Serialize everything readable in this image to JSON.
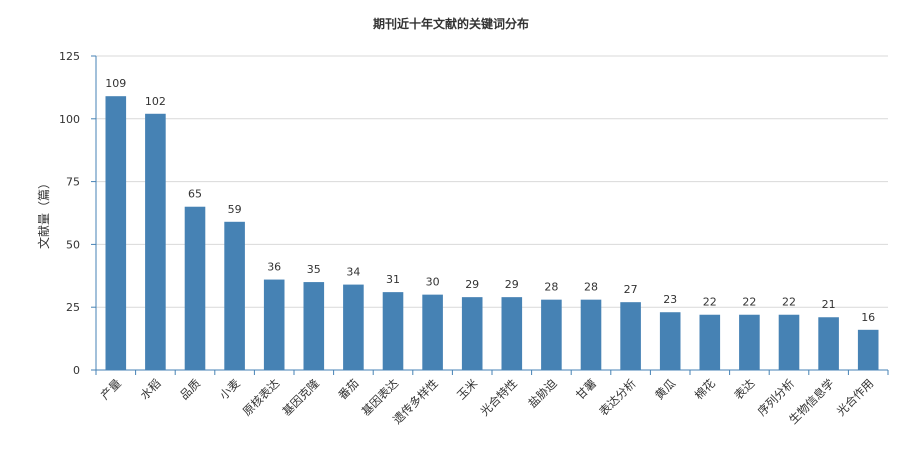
{
  "chart_data": {
    "type": "bar",
    "title": "期刊近十年文献的关键词分布",
    "xlabel": "",
    "ylabel": "文献量（篇）",
    "ylim": [
      0,
      125
    ],
    "yticks": [
      0,
      25,
      50,
      75,
      100,
      125
    ],
    "grid": true,
    "legend": "none",
    "bar_color": "#4682b4",
    "categories": [
      "产量",
      "水稻",
      "品质",
      "小麦",
      "原核表达",
      "基因克隆",
      "番茄",
      "基因表达",
      "遗传多样性",
      "玉米",
      "光合特性",
      "盐胁迫",
      "甘薯",
      "表达分析",
      "黄瓜",
      "棉花",
      "表达",
      "序列分析",
      "生物信息学",
      "光合作用"
    ],
    "values": [
      109,
      102,
      65,
      59,
      36,
      35,
      34,
      31,
      30,
      29,
      29,
      28,
      28,
      27,
      23,
      22,
      22,
      22,
      21,
      16
    ]
  }
}
